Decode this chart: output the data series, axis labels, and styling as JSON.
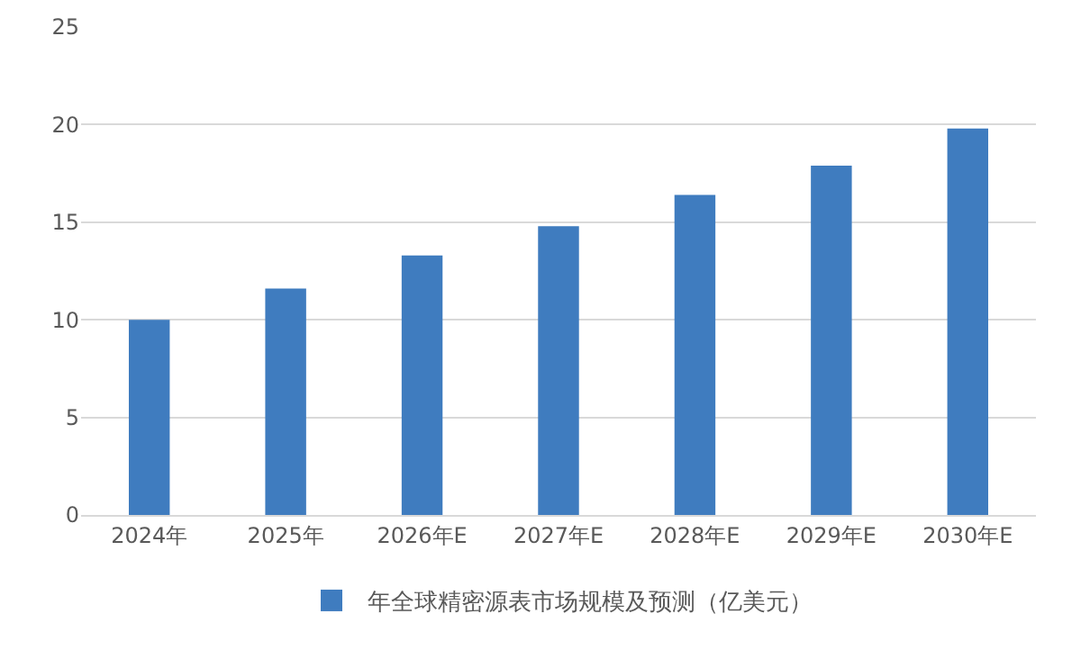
{
  "chart_data": {
    "type": "bar",
    "categories": [
      "2024年",
      "2025年",
      "2026年E",
      "2027年E",
      "2028年E",
      "2029年E",
      "2030年E"
    ],
    "series": [
      {
        "name": "年全球精密源表市场规模及预测（亿美元）",
        "color": "#3f7cbf",
        "values": [
          10.0,
          11.6,
          13.3,
          14.8,
          16.4,
          17.9,
          19.8
        ]
      }
    ],
    "ylim": [
      0,
      25
    ],
    "yticks": [
      0,
      5,
      10,
      15,
      20,
      25
    ],
    "grid": "y",
    "legend": "bottom"
  }
}
